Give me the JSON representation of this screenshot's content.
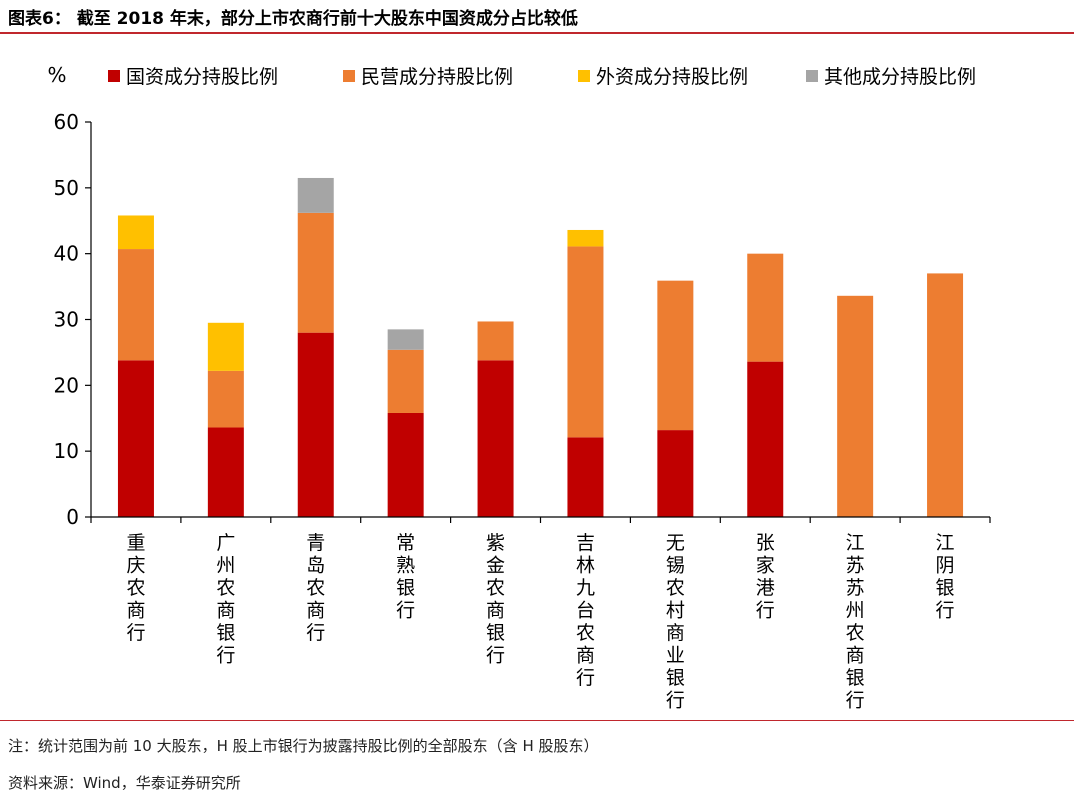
{
  "figure": {
    "title": "图表6：  截至 2018 年末，部分上市农商行前十大股东中国资成分占比较低",
    "note": "注：统计范围为前 10 大股东，H 股上市银行为披露持股比例的全部股东（含 H 股股东）",
    "source": "资料来源：Wind，华泰证券研究所"
  },
  "colors": {
    "accent_rule": "#c0272d",
    "state": "#c00000",
    "private": "#ed7d31",
    "foreign": "#ffc000",
    "other": "#a5a5a5"
  },
  "chart_data": {
    "type": "bar",
    "stacked": true,
    "ylabel": "%",
    "ylim": [
      0,
      60
    ],
    "yticks": [
      0,
      10,
      20,
      30,
      40,
      50,
      60
    ],
    "legend_position": "top",
    "grid": false,
    "categories": [
      "重庆农商行",
      "广州农商银行",
      "青岛农商行",
      "常熟银行",
      "紫金农商银行",
      "吉林九台农商行",
      "无锡农村商业银行",
      "张家港行",
      "江苏苏州农商银行",
      "江阴银行"
    ],
    "series": [
      {
        "name": "国资成分持股比例",
        "color": "#c00000",
        "values": [
          23.8,
          13.6,
          28.0,
          15.8,
          23.8,
          12.1,
          13.2,
          23.6,
          0,
          0
        ]
      },
      {
        "name": "民营成分持股比例",
        "color": "#ed7d31",
        "values": [
          16.9,
          8.6,
          18.2,
          9.6,
          5.9,
          29.0,
          22.7,
          16.4,
          33.6,
          37.0
        ]
      },
      {
        "name": "外资成分持股比例",
        "color": "#ffc000",
        "values": [
          5.1,
          7.3,
          0,
          0,
          0,
          2.5,
          0,
          0,
          0,
          0
        ]
      },
      {
        "name": "其他成分持股比例",
        "color": "#a5a5a5",
        "values": [
          0,
          0,
          5.3,
          3.1,
          0,
          0,
          0,
          0,
          0,
          0
        ]
      }
    ]
  }
}
